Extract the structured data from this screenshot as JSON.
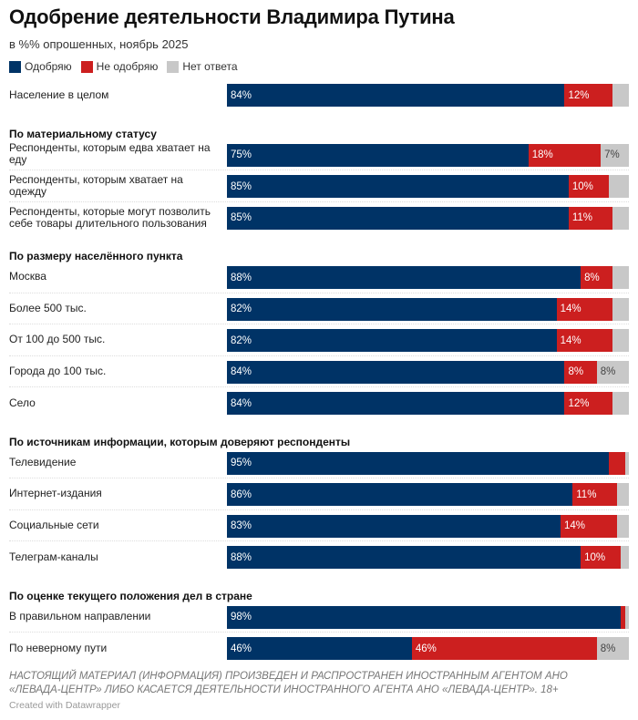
{
  "title": "Одобрение деятельности Владимира Путина",
  "subtitle": "в %% опрошенных, ноябрь 2025",
  "colors": {
    "approve": "#003366",
    "disapprove": "#cc1f1f",
    "no_answer": "#c8c8c8"
  },
  "chart_data": {
    "type": "bar",
    "stacked": true,
    "orientation": "horizontal",
    "unit": "%",
    "legend": [
      {
        "name": "Одобряю",
        "color": "#003366"
      },
      {
        "name": "Не одобряю",
        "color": "#cc1f1f"
      },
      {
        "name": "Нет ответа",
        "color": "#c8c8c8"
      }
    ],
    "groups": [
      {
        "header": "",
        "rows": [
          {
            "label": "Население в целом",
            "values": [
              84,
              12,
              4
            ],
            "labels": [
              "84%",
              "12%",
              ""
            ]
          }
        ]
      },
      {
        "header": "По материальному статусу",
        "rows": [
          {
            "label": "Респонденты, которым едва хватает на еду",
            "values": [
              75,
              18,
              7
            ],
            "labels": [
              "75%",
              "18%",
              "7%"
            ]
          },
          {
            "label": "Респонденты, которым хватает на одежду",
            "values": [
              85,
              10,
              5
            ],
            "labels": [
              "85%",
              "10%",
              ""
            ]
          },
          {
            "label": "Респонденты, которые могут позволить себе товары длительного пользования",
            "values": [
              85,
              11,
              4
            ],
            "labels": [
              "85%",
              "11%",
              ""
            ]
          }
        ]
      },
      {
        "header": "По размеру населённого пункта",
        "rows": [
          {
            "label": "Москва",
            "values": [
              88,
              8,
              4
            ],
            "labels": [
              "88%",
              "8%",
              ""
            ]
          },
          {
            "label": "Более 500 тыс.",
            "values": [
              82,
              14,
              4
            ],
            "labels": [
              "82%",
              "14%",
              ""
            ]
          },
          {
            "label": "От 100 до 500 тыс.",
            "values": [
              82,
              14,
              4
            ],
            "labels": [
              "82%",
              "14%",
              ""
            ]
          },
          {
            "label": "Города до 100 тыс.",
            "values": [
              84,
              8,
              8
            ],
            "labels": [
              "84%",
              "8%",
              "8%"
            ]
          },
          {
            "label": "Село",
            "values": [
              84,
              12,
              4
            ],
            "labels": [
              "84%",
              "12%",
              ""
            ]
          }
        ]
      },
      {
        "header": "По источникам информации, которым доверяют респонденты",
        "rows": [
          {
            "label": "Телевидение",
            "values": [
              95,
              4,
              1
            ],
            "labels": [
              "95%",
              "",
              ""
            ]
          },
          {
            "label": "Интернет-издания",
            "values": [
              86,
              11,
              3
            ],
            "labels": [
              "86%",
              "11%",
              ""
            ]
          },
          {
            "label": "Социальные сети",
            "values": [
              83,
              14,
              3
            ],
            "labels": [
              "83%",
              "14%",
              ""
            ]
          },
          {
            "label": "Телеграм-каналы",
            "values": [
              88,
              10,
              2
            ],
            "labels": [
              "88%",
              "10%",
              ""
            ]
          }
        ]
      },
      {
        "header": "По оценке текущего положения дел в стране",
        "rows": [
          {
            "label": "В правильном направлении",
            "values": [
              98,
              1,
              1
            ],
            "labels": [
              "98%",
              "",
              ""
            ]
          },
          {
            "label": "По неверному пути",
            "values": [
              46,
              46,
              8
            ],
            "labels": [
              "46%",
              "46%",
              "8%"
            ]
          }
        ]
      }
    ]
  },
  "note": "НАСТОЯЩИЙ МАТЕРИАЛ (ИНФОРМАЦИЯ) ПРОИЗВЕДЕН И РАСПРОСТРАНЕН ИНОСТРАННЫМ АГЕНТОМ АНО «ЛЕВАДА-ЦЕНТР» ЛИБО КАСАЕТСЯ ДЕЯТЕЛЬНОСТИ ИНОСТРАННОГО АГЕНТА АНО «ЛЕВАДА-ЦЕНТР». 18+",
  "credit": "Created with Datawrapper"
}
